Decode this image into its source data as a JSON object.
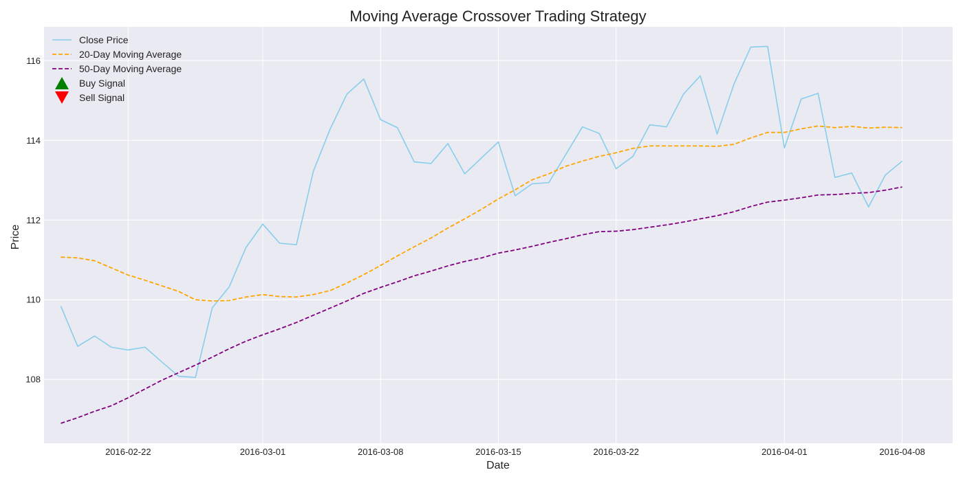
{
  "chart_data": {
    "type": "line",
    "title": "Moving Average Crossover Trading Strategy",
    "xlabel": "Date",
    "ylabel": "Price",
    "xlim": [
      "2016-02-17",
      "2016-04-11"
    ],
    "ylim": [
      106.4,
      116.85
    ],
    "x_ticks": [
      "2016-02-22",
      "2016-03-01",
      "2016-03-08",
      "2016-03-15",
      "2016-03-22",
      "2016-04-01",
      "2016-04-08"
    ],
    "y_ticks": [
      108,
      110,
      112,
      114,
      116
    ],
    "grid": true,
    "legend_position": "top-left",
    "x": [
      "2016-02-18",
      "2016-02-19",
      "2016-02-20",
      "2016-02-21",
      "2016-02-22",
      "2016-02-23",
      "2016-02-24",
      "2016-02-25",
      "2016-02-26",
      "2016-02-27",
      "2016-02-28",
      "2016-02-29",
      "2016-03-01",
      "2016-03-02",
      "2016-03-03",
      "2016-03-04",
      "2016-03-05",
      "2016-03-06",
      "2016-03-07",
      "2016-03-08",
      "2016-03-09",
      "2016-03-10",
      "2016-03-11",
      "2016-03-12",
      "2016-03-13",
      "2016-03-14",
      "2016-03-15",
      "2016-03-16",
      "2016-03-17",
      "2016-03-18",
      "2016-03-19",
      "2016-03-20",
      "2016-03-21",
      "2016-03-22",
      "2016-03-23",
      "2016-03-24",
      "2016-03-25",
      "2016-03-26",
      "2016-03-27",
      "2016-03-28",
      "2016-03-29",
      "2016-03-30",
      "2016-03-31",
      "2016-04-01",
      "2016-04-02",
      "2016-04-03",
      "2016-04-04",
      "2016-04-05",
      "2016-04-06",
      "2016-04-07",
      "2016-04-08",
      "2016-04-09"
    ],
    "series": [
      {
        "name": "Close Price",
        "color": "#87ceeb",
        "dash": "solid",
        "values": [
          109.84,
          108.83,
          109.09,
          108.81,
          108.74,
          108.81,
          108.44,
          108.08,
          108.05,
          109.8,
          110.32,
          111.31,
          111.9,
          111.42,
          111.38,
          113.22,
          114.28,
          115.16,
          115.54,
          114.52,
          114.32,
          113.46,
          113.42,
          113.92,
          113.16,
          113.56,
          113.96,
          112.61,
          112.91,
          112.94,
          113.64,
          114.34,
          114.17,
          113.29,
          113.6,
          114.39,
          114.34,
          115.16,
          115.62,
          114.16,
          115.41,
          116.34,
          116.36,
          113.81,
          115.04,
          115.18,
          113.07,
          113.18,
          112.33,
          113.13,
          113.48,
          null
        ]
      },
      {
        "name": "20-Day Moving Average",
        "color": "#ffa500",
        "dash": "dashed",
        "values": [
          111.07,
          111.05,
          110.98,
          110.8,
          110.62,
          110.49,
          110.35,
          110.21,
          110.0,
          109.97,
          109.98,
          110.07,
          110.13,
          110.08,
          110.07,
          110.13,
          110.23,
          110.42,
          110.63,
          110.86,
          111.1,
          111.33,
          111.55,
          111.8,
          112.03,
          112.27,
          112.53,
          112.76,
          113.01,
          113.16,
          113.35,
          113.48,
          113.6,
          113.69,
          113.8,
          113.86,
          113.86,
          113.86,
          113.86,
          113.85,
          113.9,
          114.06,
          114.2,
          114.2,
          114.29,
          114.36,
          114.32,
          114.35,
          114.31,
          114.33,
          114.32,
          null
        ]
      },
      {
        "name": "50-Day Moving Average",
        "color": "#800080",
        "dash": "dashed",
        "values": [
          106.9,
          107.04,
          107.2,
          107.34,
          107.54,
          107.76,
          107.98,
          108.17,
          108.36,
          108.56,
          108.77,
          108.96,
          109.12,
          109.27,
          109.43,
          109.61,
          109.79,
          109.97,
          110.16,
          110.31,
          110.45,
          110.6,
          110.72,
          110.85,
          110.96,
          111.05,
          111.17,
          111.25,
          111.34,
          111.44,
          111.53,
          111.63,
          111.71,
          111.72,
          111.76,
          111.82,
          111.88,
          111.95,
          112.03,
          112.11,
          112.21,
          112.34,
          112.45,
          112.5,
          112.56,
          112.63,
          112.64,
          112.67,
          112.69,
          112.75,
          112.83,
          null
        ]
      }
    ],
    "signals": {
      "buy": [],
      "sell": []
    },
    "legend": [
      {
        "label": "Close Price",
        "marker": "line",
        "color": "#87ceeb",
        "dash": "solid"
      },
      {
        "label": "20-Day Moving Average",
        "marker": "line",
        "color": "#ffa500",
        "dash": "dashed"
      },
      {
        "label": "50-Day Moving Average",
        "marker": "line",
        "color": "#800080",
        "dash": "dashed"
      },
      {
        "label": "Buy Signal",
        "marker": "triangle-up",
        "color": "#008000"
      },
      {
        "label": "Sell Signal",
        "marker": "triangle-down",
        "color": "#ff0000"
      }
    ],
    "style": {
      "plot_background": "#eaeaf2",
      "grid_color": "#ffffff"
    }
  }
}
